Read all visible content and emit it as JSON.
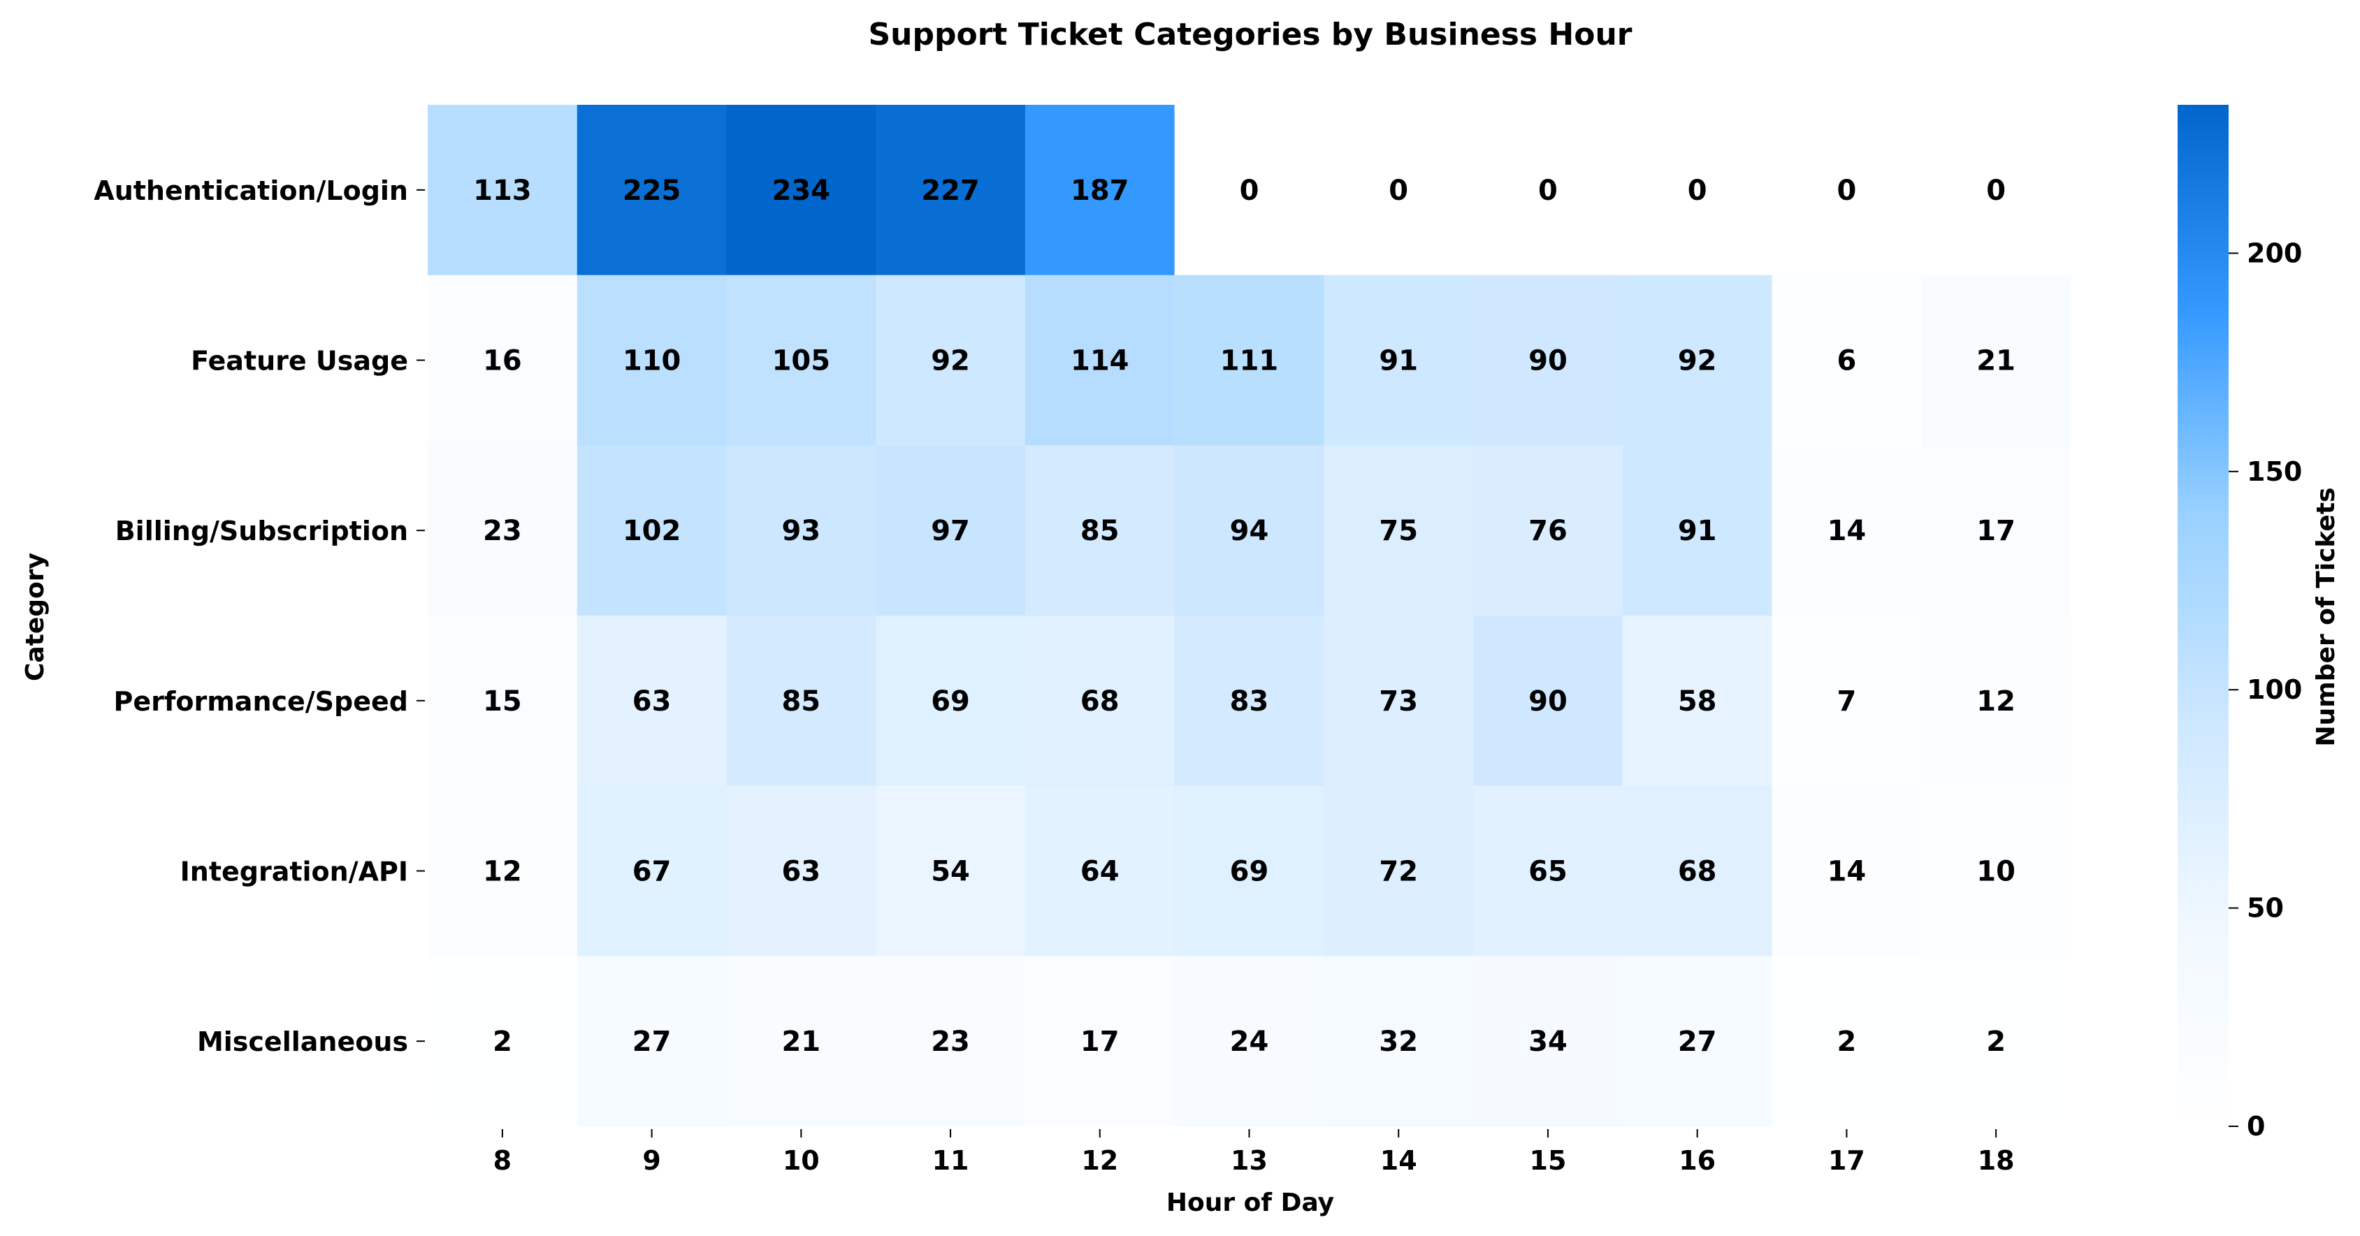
{
  "chart_data": {
    "type": "heatmap",
    "title": "Support Ticket Categories by Business Hour",
    "xlabel": "Hour of Day",
    "ylabel": "Category",
    "x_categories": [
      "8",
      "9",
      "10",
      "11",
      "12",
      "13",
      "14",
      "15",
      "16",
      "17",
      "18"
    ],
    "y_categories": [
      "Authentication/Login",
      "Feature Usage",
      "Billing/Subscription",
      "Performance/Speed",
      "Integration/API",
      "Miscellaneous"
    ],
    "values": [
      [
        113,
        225,
        234,
        227,
        187,
        0,
        0,
        0,
        0,
        0,
        0
      ],
      [
        16,
        110,
        105,
        92,
        114,
        111,
        91,
        90,
        92,
        6,
        21
      ],
      [
        23,
        102,
        93,
        97,
        85,
        94,
        75,
        76,
        91,
        14,
        17
      ],
      [
        15,
        63,
        85,
        69,
        68,
        83,
        73,
        90,
        58,
        7,
        12
      ],
      [
        12,
        67,
        63,
        54,
        64,
        69,
        72,
        65,
        68,
        14,
        10
      ],
      [
        2,
        27,
        21,
        23,
        17,
        24,
        32,
        34,
        27,
        2,
        2
      ]
    ],
    "colorbar": {
      "label": "Number of Tickets",
      "min": 0,
      "max": 234,
      "ticks": [
        0,
        50,
        100,
        150,
        200
      ]
    },
    "colors": [
      "#ffffff",
      "#f0f8ff",
      "#cce7ff",
      "#99d1ff",
      "#3399ff",
      "#0066cc"
    ],
    "annotations": "cell values shown",
    "grid": false
  }
}
